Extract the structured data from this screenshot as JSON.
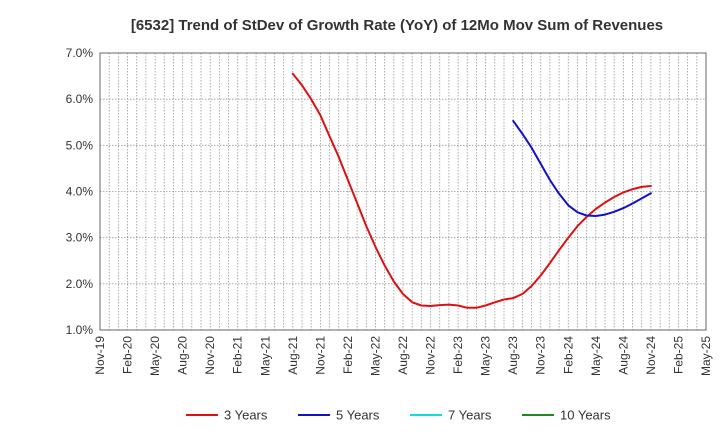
{
  "chart_data": {
    "type": "line",
    "title": "[6532]  Trend of StDev of Growth Rate (YoY) of 12Mo Mov Sum of Revenues",
    "xlabel": "",
    "ylabel": "",
    "ylim": [
      1.0,
      7.0
    ],
    "y_ticks": [
      1.0,
      2.0,
      3.0,
      4.0,
      5.0,
      6.0,
      7.0
    ],
    "y_tick_labels": [
      "1.0%",
      "2.0%",
      "3.0%",
      "4.0%",
      "5.0%",
      "6.0%",
      "7.0%"
    ],
    "x_tick_labels": [
      "Nov-19",
      "Feb-20",
      "May-20",
      "Aug-20",
      "Nov-20",
      "Feb-21",
      "May-21",
      "Aug-21",
      "Nov-21",
      "Feb-22",
      "May-22",
      "Aug-22",
      "Nov-22",
      "Feb-23",
      "May-23",
      "Aug-23",
      "Nov-23",
      "Feb-24",
      "May-24",
      "Aug-24",
      "Nov-24",
      "Feb-25",
      "May-25"
    ],
    "x_range_months": [
      0,
      66
    ],
    "grid": true,
    "legend_position": "bottom",
    "series": [
      {
        "name": "3 Years",
        "color": "#dd1111",
        "x": [
          21,
          22,
          23,
          24,
          25,
          26,
          27,
          28,
          29,
          30,
          31,
          32,
          33,
          34,
          35,
          36,
          37,
          38,
          39,
          40,
          41,
          42,
          43,
          44,
          45,
          46,
          47,
          48,
          49,
          50,
          51,
          52,
          53,
          54,
          55,
          56,
          57,
          58,
          59,
          60
        ],
        "values": [
          6.55,
          6.3,
          6.0,
          5.65,
          5.2,
          4.75,
          4.25,
          3.75,
          3.25,
          2.8,
          2.4,
          2.05,
          1.78,
          1.6,
          1.53,
          1.52,
          1.54,
          1.55,
          1.53,
          1.48,
          1.48,
          1.53,
          1.6,
          1.66,
          1.69,
          1.78,
          1.95,
          2.18,
          2.45,
          2.73,
          3.0,
          3.25,
          3.45,
          3.62,
          3.76,
          3.88,
          3.98,
          4.05,
          4.1,
          4.12
        ]
      },
      {
        "name": "5 Years",
        "color": "#1111cc",
        "x": [
          45,
          46,
          47,
          48,
          49,
          50,
          51,
          52,
          53,
          54,
          55,
          56,
          57,
          58,
          59,
          60
        ],
        "values": [
          5.53,
          5.25,
          4.95,
          4.6,
          4.25,
          3.95,
          3.7,
          3.55,
          3.48,
          3.47,
          3.5,
          3.56,
          3.64,
          3.74,
          3.85,
          3.96
        ]
      },
      {
        "name": "7 Years",
        "color": "#11dddd",
        "x": [],
        "values": []
      },
      {
        "name": "10 Years",
        "color": "#228822",
        "x": [],
        "values": []
      }
    ]
  }
}
